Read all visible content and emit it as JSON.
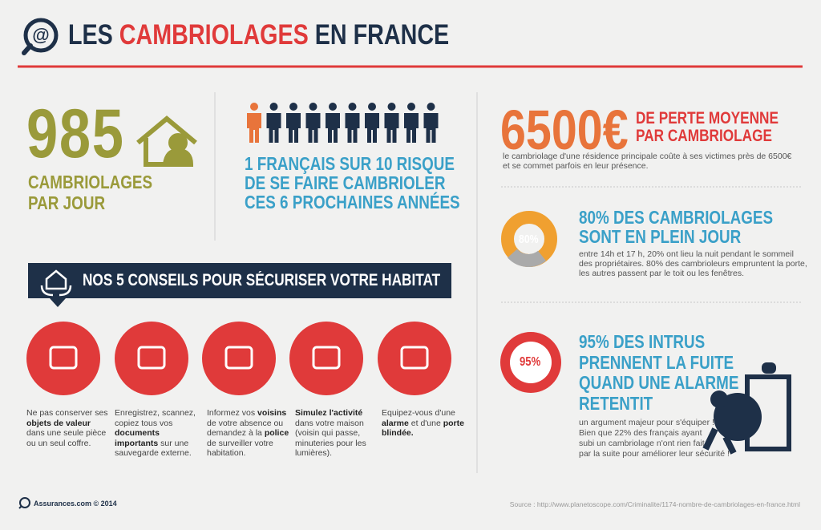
{
  "header": {
    "title_parts": [
      "LES",
      "CAMBRIOLAGES",
      "EN FRANCE"
    ]
  },
  "stat_daily": {
    "number": "985",
    "label_lines": [
      "CAMBRIOLAGES",
      "PAR JOUR"
    ]
  },
  "stat_risk": {
    "lines": [
      "1 FRANÇAIS SUR 10 RISQUE",
      "DE SE FAIRE CAMBRIOLER",
      "CES 6 PROCHAINES ANNÉES"
    ]
  },
  "stat_loss": {
    "amount": "6500€",
    "label_lines": [
      "DE PERTE MOYENNE",
      "PAR CAMBRIOLAGE"
    ],
    "description_lines": [
      "le cambriolage d'une résidence principale coûte à ses victimes près de 6500€",
      "et se commet parfois en leur présence."
    ]
  },
  "stat_daytime": {
    "badge": "80%",
    "headline_lines": [
      "80% DES CAMBRIOLAGES",
      "SONT EN PLEIN JOUR"
    ],
    "description_lines": [
      "entre 14h et 17 h, 20% ont lieu la nuit pendant le sommeil",
      "des propriétaires. 80% des cambrioleurs empruntent la porte,",
      "les autres passent par le toit ou les fenêtres."
    ]
  },
  "stat_alarm": {
    "badge": "95%",
    "headline_lines": [
      "95% DES INTRUS",
      "PRENNENT LA FUITE",
      "QUAND UNE ALARME",
      "RETENTIT"
    ],
    "description_lines": [
      "un argument majeur pour s'équiper !",
      "Bien que 22% des français ayant",
      "subi un cambriolage n'ont rien fait",
      "par la suite pour améliorer leur sécurité !"
    ]
  },
  "tips": {
    "title": "NOS 5 CONSEILS POUR SÉCURISER VOTRE HABITAT",
    "items": [
      {
        "segments": [
          {
            "text": "Ne pas conserver ses ",
            "bold": false
          },
          {
            "text": "objets de valeur",
            "bold": true
          },
          {
            "text": " dans une seule pièce ou un seul coffre.",
            "bold": false
          }
        ]
      },
      {
        "segments": [
          {
            "text": "Enregistrez, scannez, copiez tous vos ",
            "bold": false
          },
          {
            "text": "documents importants",
            "bold": true
          },
          {
            "text": " sur une sauvegarde externe.",
            "bold": false
          }
        ]
      },
      {
        "segments": [
          {
            "text": "Informez vos ",
            "bold": false
          },
          {
            "text": "voisins",
            "bold": true
          },
          {
            "text": " de votre absence ou demandez à la ",
            "bold": false
          },
          {
            "text": "police",
            "bold": true
          },
          {
            "text": " de surveiller votre habitation.",
            "bold": false
          }
        ]
      },
      {
        "segments": [
          {
            "text": "Simulez l'activité",
            "bold": true
          },
          {
            "text": " dans votre maison (voisin qui passe, minuteries pour les lumières).",
            "bold": false
          }
        ]
      },
      {
        "segments": [
          {
            "text": "Equipez-vous d'une ",
            "bold": false
          },
          {
            "text": "alarme",
            "bold": true
          },
          {
            "text": " et d'une ",
            "bold": false
          },
          {
            "text": "porte blindée.",
            "bold": true
          }
        ]
      }
    ]
  },
  "footer": {
    "brand": "Assurances.com © 2014",
    "source": "Source : http://www.planetoscope.com/Criminalite/1174-nombre-de-cambriolages-en-france.html"
  }
}
